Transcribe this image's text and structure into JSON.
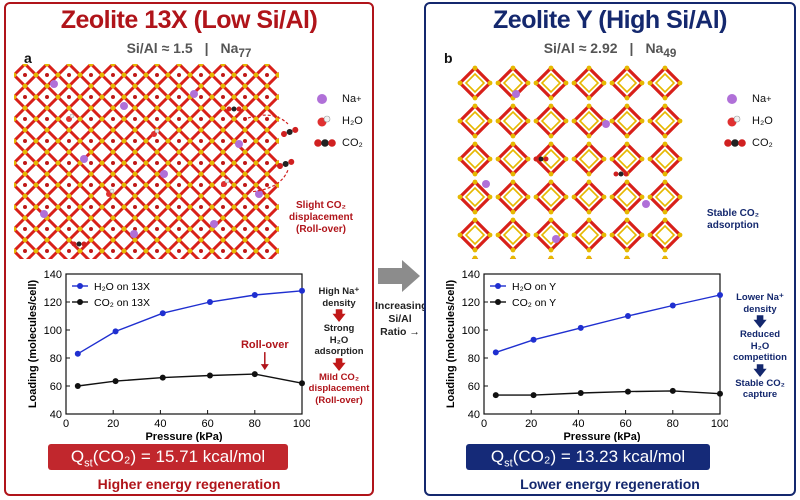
{
  "panel_a": {
    "title": "Zeolite 13X (Low Si/Al)",
    "ratio": "Si/Al ≈ 1.5",
    "sep": "|",
    "na": "Na",
    "na_count": "77",
    "label": "a",
    "legend": {
      "na": "Na",
      "na_sup": "+",
      "h2o": "H₂O",
      "co2": "CO₂"
    },
    "note": [
      "Slight CO₂",
      "displacement",
      "(Roll-over)"
    ],
    "flow": {
      "step1": [
        "High Na⁺",
        "density"
      ],
      "step2": [
        "Strong",
        "H₂O adsorption"
      ],
      "step3": [
        "Mild CO₂",
        "displacement",
        "(Roll-over)"
      ]
    },
    "q_pre": "Q",
    "q_sub": "st",
    "q_post": "(CO₂) = 15.71 kcal/mol",
    "regen": "Higher energy regeneration",
    "colors": {
      "accent": "#b0141a",
      "box": "#c1272d"
    }
  },
  "panel_b": {
    "title": "Zeolite Y (High Si/Al)",
    "ratio": "Si/Al ≈ 2.92",
    "sep": "|",
    "na": "Na",
    "na_count": "49",
    "label": "b",
    "legend": {
      "na": "Na",
      "na_sup": "+",
      "h2o": "H₂O",
      "co2": "CO₂"
    },
    "note": [
      "Stable CO₂",
      "adsorption"
    ],
    "flow": {
      "step1": [
        "Lower Na⁺",
        "density"
      ],
      "step2": [
        "Reduced",
        "H₂O competition"
      ],
      "step3": [
        "Stable CO₂",
        "capture"
      ]
    },
    "q_pre": "Q",
    "q_sub": "st",
    "q_post": "(CO₂) = 13.23 kcal/mol",
    "regen": "Lower energy regeneration",
    "colors": {
      "accent": "#14286e",
      "box": "#152a78"
    }
  },
  "middle_arrow": [
    "Increasing",
    "Si/Al",
    "Ratio →"
  ],
  "chart_data": [
    {
      "type": "line",
      "xlabel": "Pressure (kPa)",
      "ylabel": "Loading (molecules/cell)",
      "xlim": [
        0,
        100
      ],
      "ylim": [
        40,
        140
      ],
      "xticks": [
        0,
        20,
        40,
        60,
        80,
        100
      ],
      "yticks": [
        40,
        60,
        80,
        100,
        120,
        140
      ],
      "grid": false,
      "legend_position": "top-left",
      "annotation": "Roll-over",
      "series": [
        {
          "name": "H₂O on 13X",
          "color": "#1f2fd0",
          "x": [
            5,
            21,
            41,
            61,
            80,
            100
          ],
          "y": [
            83,
            99,
            112,
            120,
            125,
            128
          ]
        },
        {
          "name": "CO₂ on 13X",
          "color": "#111111",
          "x": [
            5,
            21,
            41,
            61,
            80,
            100
          ],
          "y": [
            60,
            63.5,
            66,
            67.5,
            68.5,
            62
          ]
        }
      ]
    },
    {
      "type": "line",
      "xlabel": "Pressure (kPa)",
      "ylabel": "Loading (molecules/cell)",
      "xlim": [
        0,
        100
      ],
      "ylim": [
        40,
        140
      ],
      "xticks": [
        0,
        20,
        40,
        60,
        80,
        100
      ],
      "yticks": [
        40,
        60,
        80,
        100,
        120,
        140
      ],
      "grid": false,
      "legend_position": "top-left",
      "series": [
        {
          "name": "H₂O on Y",
          "color": "#1f2fd0",
          "x": [
            5,
            21,
            41,
            61,
            80,
            100
          ],
          "y": [
            84,
            93,
            101.5,
            110,
            117.5,
            125
          ]
        },
        {
          "name": "CO₂ on Y",
          "color": "#111111",
          "x": [
            5,
            21,
            41,
            61,
            80,
            100
          ],
          "y": [
            53.5,
            53.5,
            55,
            56,
            56.5,
            54.5
          ]
        }
      ]
    }
  ]
}
